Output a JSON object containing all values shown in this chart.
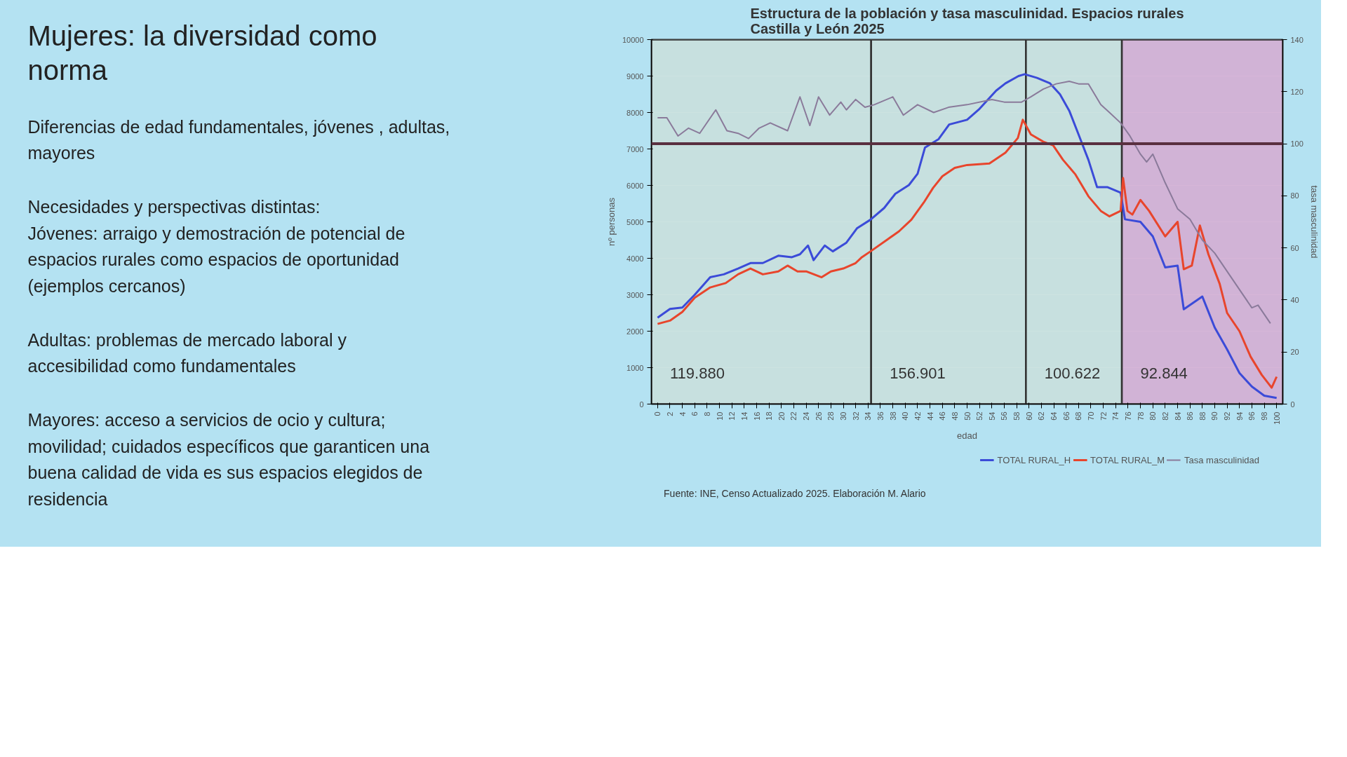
{
  "chart_data": {
    "type": "line",
    "title": "Estructura de la población y tasa masculinidad. Espacios rurales\nCastilla y León 2025",
    "xlabel": "edad",
    "ylabel": "nº personas",
    "y2label": "tasa masculinidad",
    "annotations": [
      "Mujeres: la diversidad como\nnorma",
      "Diferencias de edad fundamentales, jóvenes , adultas,\nmayores",
      "Necesidades y perspectivas distintas:\nJóvenes: arraigo y demostración de potencial de\nespacios rurales como espacios de oportunidad\n(ejemplos cercanos)",
      "Adultas: problemas de mercado laboral y\naccesibilidad como fundamentales",
      "Mayores: acceso a servicios de ocio y cultura;\nmovilidad; cuidados específicos que garanticen una\nbuena calidad de vida es sus espacios elegidos de\nresidencia",
      "Fuente: INE, Censo Actualizado 2025. Elaboración M. Alario"
    ],
    "xlim": [
      -1,
      101
    ],
    "xticks": [
      0,
      2,
      4,
      6,
      8,
      10,
      12,
      14,
      16,
      18,
      20,
      22,
      24,
      26,
      28,
      30,
      32,
      34,
      36,
      38,
      40,
      42,
      44,
      46,
      48,
      50,
      52,
      54,
      56,
      58,
      60,
      62,
      64,
      66,
      68,
      70,
      72,
      74,
      76,
      78,
      80,
      82,
      84,
      86,
      88,
      90,
      92,
      94,
      96,
      98,
      100
    ],
    "ylim": [
      0,
      10000
    ],
    "yticks": [
      0,
      1000,
      2000,
      3000,
      4000,
      5000,
      6000,
      7000,
      8000,
      9000,
      10000
    ],
    "y2lim": [
      0,
      140
    ],
    "y2ticks": [
      0,
      20,
      40,
      60,
      80,
      100,
      120,
      140
    ],
    "grid": "y",
    "legend": "bottom",
    "line_style": "solid",
    "series": [
      {
        "name": "TOTAL RURAL_H",
        "color": "#3b4bd8",
        "x": [
          0,
          2,
          4,
          6,
          8.5,
          10.7,
          13,
          15,
          17,
          19.5,
          21.7,
          23,
          24.3,
          25.2,
          27,
          28.3,
          30.5,
          32.2,
          34.4,
          36.6,
          38.4,
          40.6,
          42,
          43.2,
          45.4,
          47.1,
          50,
          52,
          54.7,
          56.2,
          58.3,
          59.3,
          61.3,
          63.4,
          65,
          66.5,
          68,
          69.6,
          71,
          72.7,
          74.8,
          75.5,
          78,
          80,
          82,
          84,
          85,
          88,
          90,
          92,
          94,
          96,
          98,
          100
        ],
        "values": [
          2370,
          2610,
          2650,
          3000,
          3480,
          3560,
          3720,
          3870,
          3870,
          4070,
          4030,
          4110,
          4350,
          3950,
          4350,
          4190,
          4430,
          4820,
          5060,
          5380,
          5770,
          6010,
          6320,
          7040,
          7270,
          7670,
          7800,
          8100,
          8600,
          8800,
          9000,
          9050,
          8950,
          8800,
          8500,
          8050,
          7400,
          6700,
          5950,
          5950,
          5800,
          5070,
          5000,
          4600,
          3750,
          3800,
          2600,
          2950,
          2100,
          1500,
          850,
          480,
          230,
          170
        ]
      },
      {
        "name": "TOTAL RURAL_M",
        "color": "#e8452c",
        "x": [
          0,
          2,
          4,
          6,
          8.5,
          11,
          13,
          15,
          17,
          19.5,
          21,
          22.6,
          24,
          26.5,
          28,
          30,
          32,
          33,
          34.4,
          37,
          39,
          41,
          43,
          44.5,
          46,
          48,
          50,
          53.6,
          56.2,
          58.2,
          59,
          60.3,
          62.3,
          63.9,
          65.5,
          67.5,
          69.6,
          71.6,
          73,
          74.8,
          75.2,
          75.9,
          76.7,
          78,
          79.4,
          82,
          84,
          85,
          86.3,
          87.6,
          89,
          90.8,
          92,
          94,
          95.8,
          97.6,
          99.2,
          100
        ],
        "values": [
          2200,
          2290,
          2530,
          2920,
          3200,
          3320,
          3560,
          3720,
          3560,
          3640,
          3800,
          3640,
          3640,
          3480,
          3640,
          3720,
          3870,
          4030,
          4190,
          4500,
          4740,
          5060,
          5530,
          5930,
          6250,
          6480,
          6560,
          6600,
          6900,
          7300,
          7800,
          7400,
          7200,
          7100,
          6700,
          6300,
          5700,
          5300,
          5150,
          5300,
          6200,
          5300,
          5200,
          5600,
          5300,
          4600,
          5000,
          3700,
          3800,
          4900,
          4100,
          3300,
          2500,
          2000,
          1300,
          800,
          450,
          750
        ]
      },
      {
        "name": "Tasa masculinidad",
        "color": "#8a7a9a",
        "axis": "y2",
        "x": [
          0,
          1.5,
          3.3,
          5,
          6.8,
          9.4,
          11.2,
          13,
          14.7,
          16.4,
          18.2,
          21,
          23,
          24.6,
          26,
          27.8,
          29.6,
          30.5,
          32,
          33.5,
          35,
          38,
          39.7,
          42,
          44.6,
          47,
          50,
          54,
          56,
          58.8,
          60.3,
          62.3,
          64.4,
          66.5,
          68,
          69.6,
          71.6,
          73,
          74.8,
          76.3,
          78,
          79,
          80,
          82,
          84,
          86,
          88,
          90,
          92,
          94,
          96,
          97,
          99
        ],
        "values": [
          110,
          110,
          103,
          106,
          104,
          113,
          105,
          104,
          102,
          106,
          108,
          105,
          118,
          107,
          118,
          111,
          116,
          113,
          117,
          114,
          115,
          118,
          111,
          115,
          112,
          114,
          115,
          117,
          116,
          116,
          118,
          121,
          123,
          124,
          123,
          123,
          115,
          112,
          108,
          103,
          96,
          93,
          96,
          85,
          75,
          71,
          63,
          58,
          51,
          44,
          37,
          38,
          31
        ]
      }
    ],
    "ref_lines": [
      {
        "axis": "y2",
        "value": 100,
        "color": "#5a3040"
      }
    ],
    "bands": [
      {
        "axis": "x",
        "from": -1,
        "to": 34.5,
        "label": "119.880",
        "color": "#c8dedb"
      },
      {
        "axis": "x",
        "from": 34.5,
        "to": 59.5,
        "label": "156.901",
        "color": "#c8dedb"
      },
      {
        "axis": "x",
        "from": 59.5,
        "to": 75,
        "label": "100.622",
        "color": "#c8dedb"
      },
      {
        "axis": "x",
        "from": 75,
        "to": 101,
        "label": "92.844",
        "color": "#d4a6cf"
      }
    ]
  }
}
